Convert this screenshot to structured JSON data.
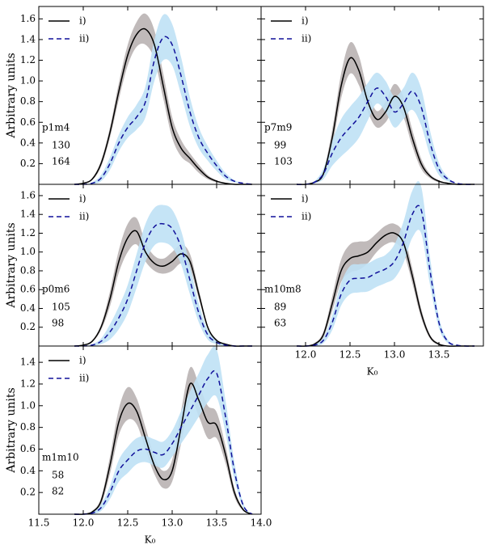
{
  "chart_data": [
    {
      "type": "line",
      "label": "p1m4",
      "ylabel": "Arbitrary units",
      "x": [
        11.9,
        12.0,
        12.1,
        12.2,
        12.3,
        12.4,
        12.5,
        12.6,
        12.7,
        12.8,
        12.9,
        13.0,
        13.1,
        13.2,
        13.3,
        13.4,
        13.5,
        13.6,
        13.7,
        13.8,
        13.9
      ],
      "xlim": [
        11.5,
        14.0
      ],
      "ylim": [
        0,
        1.72
      ],
      "xticks": [
        12,
        12.5,
        13,
        13.5
      ],
      "xtick_labels": false,
      "yticks": [
        0.2,
        0.4,
        0.6,
        0.8,
        {
          "value": 1,
          "label": "1.0"
        },
        1.2,
        1.4,
        1.6
      ],
      "ytick_labels": true,
      "series": [
        {
          "name": "i)",
          "color": "#000000",
          "band_color": "#b9b3b3",
          "dashed": false,
          "count": 130,
          "values": [
            0,
            0.01,
            0.05,
            0.2,
            0.5,
            0.9,
            1.25,
            1.45,
            1.5,
            1.35,
            0.95,
            0.55,
            0.35,
            0.25,
            0.15,
            0.07,
            0.03,
            0.01,
            0,
            0,
            0
          ],
          "errors": [
            0,
            0,
            0.01,
            0.03,
            0.05,
            0.08,
            0.1,
            0.12,
            0.15,
            0.14,
            0.12,
            0.1,
            0.08,
            0.05,
            0.04,
            0.02,
            0.01,
            0,
            0,
            0,
            0
          ]
        },
        {
          "name": "ii)",
          "color": "#10109a",
          "band_color": "#bfe1f5",
          "dashed": true,
          "count": 164,
          "values": [
            0,
            0,
            0.01,
            0.06,
            0.2,
            0.4,
            0.55,
            0.65,
            0.8,
            1.2,
            1.42,
            1.35,
            1.05,
            0.7,
            0.45,
            0.3,
            0.18,
            0.08,
            0.03,
            0.01,
            0
          ],
          "errors": [
            0,
            0,
            0.01,
            0.03,
            0.06,
            0.08,
            0.1,
            0.12,
            0.15,
            0.2,
            0.22,
            0.2,
            0.18,
            0.14,
            0.1,
            0.07,
            0.05,
            0.03,
            0.01,
            0,
            0
          ]
        }
      ]
    },
    {
      "type": "line",
      "label": "p7m9",
      "x": [
        11.9,
        12.0,
        12.1,
        12.2,
        12.3,
        12.4,
        12.5,
        12.6,
        12.7,
        12.8,
        12.9,
        13.0,
        13.1,
        13.2,
        13.3,
        13.4,
        13.5,
        13.6,
        13.7,
        13.8,
        13.9
      ],
      "xlim": [
        11.5,
        14.0
      ],
      "ylim": [
        0,
        1.72
      ],
      "xticks": [
        12,
        12.5,
        13,
        13.5
      ],
      "xtick_labels": false,
      "yticks": [
        0.2,
        0.4,
        0.6,
        0.8,
        1,
        1.2,
        1.4,
        1.6
      ],
      "ytick_labels": false,
      "series": [
        {
          "name": "i)",
          "color": "#000000",
          "band_color": "#b9b3b3",
          "dashed": false,
          "count": 99,
          "values": [
            0,
            0,
            0.02,
            0.1,
            0.45,
            0.95,
            1.22,
            1.1,
            0.8,
            0.63,
            0.7,
            0.85,
            0.75,
            0.45,
            0.2,
            0.08,
            0.03,
            0.01,
            0,
            0,
            0
          ],
          "errors": [
            0,
            0,
            0.01,
            0.03,
            0.08,
            0.12,
            0.15,
            0.14,
            0.1,
            0.08,
            0.1,
            0.12,
            0.1,
            0.08,
            0.05,
            0.02,
            0.01,
            0,
            0,
            0,
            0
          ]
        },
        {
          "name": "ii)",
          "color": "#10109a",
          "band_color": "#bfe1f5",
          "dashed": true,
          "count": 103,
          "values": [
            0,
            0,
            0.02,
            0.1,
            0.3,
            0.45,
            0.55,
            0.65,
            0.8,
            0.93,
            0.85,
            0.7,
            0.78,
            0.9,
            0.75,
            0.4,
            0.15,
            0.05,
            0.01,
            0,
            0
          ],
          "errors": [
            0,
            0,
            0.01,
            0.05,
            0.12,
            0.18,
            0.2,
            0.2,
            0.18,
            0.15,
            0.15,
            0.15,
            0.15,
            0.18,
            0.18,
            0.12,
            0.06,
            0.02,
            0,
            0,
            0
          ]
        }
      ]
    },
    {
      "type": "line",
      "label": "p0m6",
      "ylabel": "Arbitrary units",
      "x": [
        11.9,
        12.0,
        12.1,
        12.2,
        12.3,
        12.4,
        12.5,
        12.6,
        12.7,
        12.8,
        12.9,
        13.0,
        13.1,
        13.2,
        13.3,
        13.4,
        13.5,
        13.6,
        13.7,
        13.8,
        13.9
      ],
      "xlim": [
        11.5,
        14.0
      ],
      "ylim": [
        0,
        1.72
      ],
      "xticks": [
        12,
        12.5,
        13,
        13.5
      ],
      "xtick_labels": false,
      "yticks": [
        0.2,
        0.4,
        0.6,
        0.8,
        {
          "value": 1,
          "label": "1.0"
        },
        1.2,
        1.4,
        1.6
      ],
      "ytick_labels": true,
      "series": [
        {
          "name": "i)",
          "color": "#000000",
          "band_color": "#b9b3b3",
          "dashed": false,
          "count": 105,
          "values": [
            0,
            0.01,
            0.05,
            0.2,
            0.5,
            0.9,
            1.15,
            1.22,
            1.0,
            0.88,
            0.85,
            0.9,
            0.98,
            0.9,
            0.55,
            0.2,
            0.06,
            0.02,
            0,
            0,
            0
          ],
          "errors": [
            0,
            0,
            0.01,
            0.03,
            0.08,
            0.12,
            0.15,
            0.14,
            0.1,
            0.08,
            0.08,
            0.1,
            0.1,
            0.08,
            0.05,
            0.02,
            0.01,
            0,
            0,
            0,
            0
          ]
        },
        {
          "name": "ii)",
          "color": "#10109a",
          "band_color": "#bfe1f5",
          "dashed": true,
          "count": 98,
          "values": [
            0,
            0,
            0.01,
            0.05,
            0.15,
            0.3,
            0.5,
            0.8,
            1.1,
            1.27,
            1.3,
            1.25,
            1.05,
            0.7,
            0.35,
            0.12,
            0.04,
            0.01,
            0,
            0,
            0
          ],
          "errors": [
            0,
            0,
            0.01,
            0.03,
            0.08,
            0.12,
            0.15,
            0.18,
            0.2,
            0.2,
            0.2,
            0.2,
            0.18,
            0.15,
            0.1,
            0.05,
            0.02,
            0.01,
            0,
            0,
            0
          ]
        }
      ]
    },
    {
      "type": "line",
      "label": "m10m8",
      "xlabel": "K₀",
      "x": [
        11.9,
        12.0,
        12.1,
        12.2,
        12.3,
        12.4,
        12.5,
        12.6,
        12.7,
        12.8,
        12.9,
        13.0,
        13.1,
        13.2,
        13.3,
        13.4,
        13.5,
        13.6,
        13.7,
        13.8,
        13.9
      ],
      "xlim": [
        11.5,
        14.0
      ],
      "ylim": [
        0,
        1.72
      ],
      "xticks": [
        {
          "value": 12,
          "label": "12.0"
        },
        12.5,
        {
          "value": 13,
          "label": "13.0"
        },
        13.5
      ],
      "xtick_labels": true,
      "yticks": [
        0.2,
        0.4,
        0.6,
        0.8,
        1,
        1.2,
        1.4,
        1.6
      ],
      "ytick_labels": false,
      "series": [
        {
          "name": "i)",
          "color": "#000000",
          "band_color": "#b9b3b3",
          "dashed": false,
          "count": 89,
          "values": [
            0,
            0,
            0.02,
            0.12,
            0.45,
            0.8,
            0.93,
            0.96,
            1.0,
            1.1,
            1.18,
            1.2,
            1.1,
            0.75,
            0.35,
            0.1,
            0.02,
            0,
            0,
            0,
            0
          ],
          "errors": [
            0,
            0,
            0.01,
            0.03,
            0.08,
            0.12,
            0.15,
            0.15,
            0.12,
            0.1,
            0.1,
            0.1,
            0.1,
            0.08,
            0.05,
            0.02,
            0.01,
            0,
            0,
            0,
            0
          ]
        },
        {
          "name": "ii)",
          "color": "#10109a",
          "band_color": "#bfe1f5",
          "dashed": true,
          "count": 63,
          "values": [
            0,
            0,
            0.01,
            0.06,
            0.25,
            0.55,
            0.7,
            0.72,
            0.73,
            0.78,
            0.82,
            0.9,
            1.1,
            1.4,
            1.45,
            0.8,
            0.25,
            0.05,
            0.01,
            0,
            0
          ],
          "errors": [
            0,
            0,
            0.01,
            0.03,
            0.08,
            0.12,
            0.15,
            0.15,
            0.15,
            0.15,
            0.15,
            0.18,
            0.22,
            0.25,
            0.25,
            0.15,
            0.06,
            0.02,
            0,
            0,
            0
          ]
        }
      ]
    },
    {
      "type": "line",
      "label": "m1m10",
      "ylabel": "Arbitrary units",
      "xlabel": "K₀",
      "x": [
        11.9,
        12.0,
        12.1,
        12.2,
        12.3,
        12.4,
        12.5,
        12.6,
        12.7,
        12.8,
        12.9,
        13.0,
        13.1,
        13.2,
        13.3,
        13.4,
        13.5,
        13.6,
        13.7,
        13.8,
        13.9
      ],
      "xlim": [
        11.5,
        14.0
      ],
      "ylim": [
        0,
        1.55
      ],
      "xticks": [
        11.5,
        {
          "value": 12,
          "label": "12.0"
        },
        12.5,
        {
          "value": 13,
          "label": "13.0"
        },
        13.5,
        {
          "value": 14,
          "label": "14.0"
        }
      ],
      "xtick_labels": true,
      "yticks": [
        0.2,
        0.4,
        0.6,
        0.8,
        {
          "value": 1,
          "label": "1.0"
        },
        1.2,
        1.4
      ],
      "ytick_labels": true,
      "series": [
        {
          "name": "i)",
          "color": "#000000",
          "band_color": "#b9b3b3",
          "dashed": false,
          "count": 58,
          "values": [
            0,
            0,
            0.02,
            0.12,
            0.45,
            0.85,
            1.02,
            0.95,
            0.7,
            0.45,
            0.32,
            0.4,
            0.8,
            1.2,
            1.05,
            0.85,
            0.82,
            0.55,
            0.2,
            0.04,
            0
          ],
          "errors": [
            0,
            0,
            0.01,
            0.03,
            0.08,
            0.12,
            0.15,
            0.12,
            0.1,
            0.08,
            0.08,
            0.1,
            0.15,
            0.15,
            0.15,
            0.15,
            0.12,
            0.08,
            0.04,
            0.01,
            0
          ]
        },
        {
          "name": "ii)",
          "color": "#10109a",
          "band_color": "#bfe1f5",
          "dashed": true,
          "count": 82,
          "values": [
            0,
            0,
            0.01,
            0.06,
            0.2,
            0.4,
            0.5,
            0.58,
            0.6,
            0.57,
            0.55,
            0.65,
            0.8,
            0.95,
            1.1,
            1.25,
            1.3,
            0.9,
            0.4,
            0.08,
            0
          ],
          "errors": [
            0,
            0,
            0.01,
            0.03,
            0.06,
            0.1,
            0.12,
            0.12,
            0.12,
            0.12,
            0.12,
            0.12,
            0.15,
            0.18,
            0.2,
            0.22,
            0.22,
            0.15,
            0.08,
            0.02,
            0
          ]
        }
      ]
    }
  ]
}
